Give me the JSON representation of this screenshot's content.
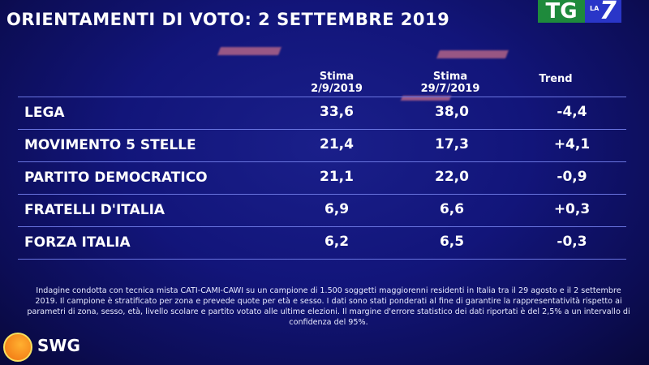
{
  "title": "ORIENTAMENTI DI VOTO: 2 SETTEMBRE 2019",
  "broadcaster_logo": {
    "tg": "TG",
    "la": "LA",
    "seven": "7"
  },
  "chart_data": {
    "type": "table",
    "columns": [
      "",
      "Stima\n2/9/2019",
      "Stima\n29/7/2019",
      "Trend"
    ],
    "column_headers": [
      {
        "line1": "Stima",
        "line2": "2/9/2019"
      },
      {
        "line1": "Stima",
        "line2": "29/7/2019"
      },
      {
        "line1": "Trend",
        "line2": ""
      }
    ],
    "rows": [
      {
        "party": "LEGA",
        "stima_2_9": "33,6",
        "stima_29_7": "38,0",
        "trend": "-4,4"
      },
      {
        "party": "MOVIMENTO 5 STELLE",
        "stima_2_9": "21,4",
        "stima_29_7": "17,3",
        "trend": "+4,1"
      },
      {
        "party": "PARTITO DEMOCRATICO",
        "stima_2_9": "21,1",
        "stima_29_7": "22,0",
        "trend": "-0,9"
      },
      {
        "party": "FRATELLI D'ITALIA",
        "stima_2_9": "6,9",
        "stima_29_7": "6,6",
        "trend": "+0,3"
      },
      {
        "party": "FORZA ITALIA",
        "stima_2_9": "6,2",
        "stima_29_7": "6,5",
        "trend": "-0,3"
      }
    ]
  },
  "footnote": "Indagine condotta con tecnica mista CATI-CAMI-CAWI su un campione di 1.500 soggetti maggiorenni residenti in Italia tra il 29 agosto e il 2 settembre 2019. Il campione è stratificato per zona e prevede quote per età e sesso. I dati sono stati ponderati al fine di garantire la rappresentatività rispetto ai parametri di zona, sesso, età, livello scolare e partito votato alle ultime elezioni. Il margine d'errore statistico dei dati riportati è del 2,5% a un intervallo di confidenza del 95%.",
  "source_logo": "SWG",
  "colors": {
    "background": "#12157a",
    "tg_green": "#1e8a3c",
    "la7_blue": "#2a36c8",
    "swg_orange": "#f07010"
  }
}
